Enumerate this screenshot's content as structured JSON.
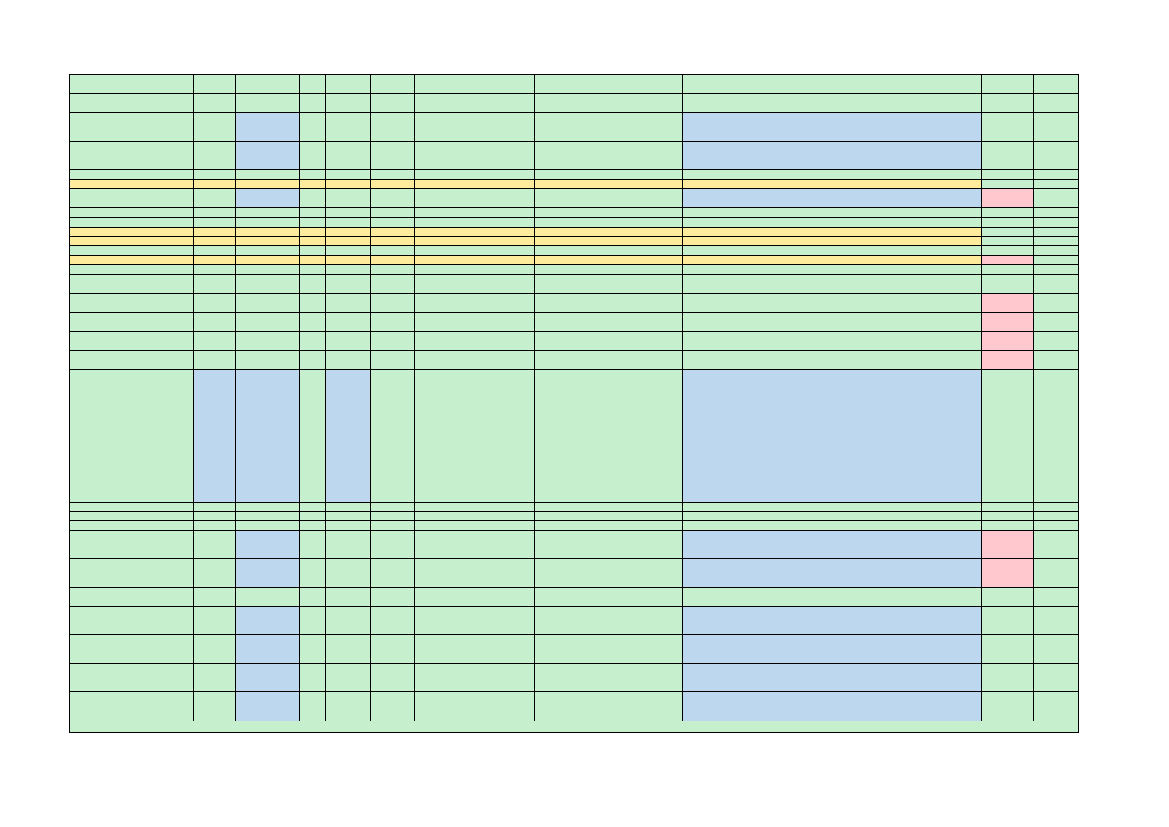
{
  "legend_colors": {
    "default": "#c6efce",
    "blue": "#bdd7ee",
    "yellow": "#ffeb9c",
    "pink": "#ffc7ce"
  },
  "rows": [
    {
      "fill": [],
      "texts": []
    },
    {
      "fill": [],
      "texts": []
    },
    {
      "fill": [
        [
          2,
          "blue"
        ],
        [
          8,
          "blue"
        ]
      ],
      "texts": []
    },
    {
      "fill": [
        [
          2,
          "blue"
        ],
        [
          8,
          "blue"
        ]
      ],
      "texts": []
    },
    {
      "fill": [],
      "texts": []
    },
    {
      "fill": [
        [
          0,
          "yellow"
        ],
        [
          1,
          "yellow"
        ],
        [
          2,
          "yellow"
        ],
        [
          3,
          "yellow"
        ],
        [
          4,
          "yellow"
        ],
        [
          5,
          "yellow"
        ],
        [
          6,
          "yellow"
        ],
        [
          7,
          "yellow"
        ],
        [
          8,
          "yellow"
        ]
      ],
      "texts": []
    },
    {
      "fill": [
        [
          2,
          "blue"
        ],
        [
          8,
          "blue"
        ],
        [
          9,
          "pink"
        ]
      ],
      "texts": []
    },
    {
      "fill": [],
      "texts": []
    },
    {
      "fill": [],
      "texts": []
    },
    {
      "fill": [
        [
          0,
          "yellow"
        ],
        [
          1,
          "yellow"
        ],
        [
          2,
          "yellow"
        ],
        [
          3,
          "yellow"
        ],
        [
          4,
          "yellow"
        ],
        [
          5,
          "yellow"
        ],
        [
          6,
          "yellow"
        ],
        [
          7,
          "yellow"
        ],
        [
          8,
          "yellow"
        ]
      ],
      "texts": []
    },
    {
      "fill": [
        [
          0,
          "yellow"
        ],
        [
          1,
          "yellow"
        ],
        [
          2,
          "yellow"
        ],
        [
          3,
          "yellow"
        ],
        [
          4,
          "yellow"
        ],
        [
          5,
          "yellow"
        ],
        [
          6,
          "yellow"
        ],
        [
          7,
          "yellow"
        ],
        [
          8,
          "yellow"
        ]
      ],
      "texts": []
    },
    {
      "fill": [],
      "texts": []
    },
    {
      "fill": [
        [
          0,
          "yellow"
        ],
        [
          1,
          "yellow"
        ],
        [
          2,
          "yellow"
        ],
        [
          3,
          "yellow"
        ],
        [
          4,
          "yellow"
        ],
        [
          5,
          "yellow"
        ],
        [
          6,
          "yellow"
        ],
        [
          7,
          "yellow"
        ],
        [
          8,
          "yellow"
        ],
        [
          9,
          "pink"
        ]
      ],
      "texts": []
    },
    {
      "fill": [],
      "texts": []
    },
    {
      "fill": [],
      "texts": []
    },
    {
      "fill": [
        [
          9,
          "pink"
        ]
      ],
      "texts": []
    },
    {
      "fill": [
        [
          9,
          "pink"
        ]
      ],
      "texts": []
    },
    {
      "fill": [
        [
          9,
          "pink"
        ]
      ],
      "texts": []
    },
    {
      "fill": [
        [
          9,
          "pink"
        ]
      ],
      "texts": []
    },
    {
      "fill": [
        [
          1,
          "blue"
        ],
        [
          2,
          "blue"
        ],
        [
          4,
          "blue"
        ],
        [
          8,
          "blue"
        ]
      ],
      "texts": []
    },
    {
      "fill": [],
      "texts": []
    },
    {
      "fill": [],
      "texts": []
    },
    {
      "fill": [],
      "texts": []
    },
    {
      "fill": [
        [
          2,
          "blue"
        ],
        [
          8,
          "blue"
        ],
        [
          9,
          "pink"
        ]
      ],
      "texts": []
    },
    {
      "fill": [
        [
          2,
          "blue"
        ],
        [
          8,
          "blue"
        ],
        [
          9,
          "pink"
        ]
      ],
      "texts": []
    },
    {
      "fill": [],
      "texts": []
    },
    {
      "fill": [
        [
          2,
          "blue"
        ],
        [
          8,
          "blue"
        ]
      ],
      "texts": []
    },
    {
      "fill": [
        [
          2,
          "blue"
        ],
        [
          8,
          "blue"
        ]
      ],
      "texts": []
    },
    {
      "fill": [
        [
          2,
          "blue"
        ],
        [
          8,
          "blue"
        ]
      ],
      "texts": []
    },
    {
      "fill": [
        [
          2,
          "blue"
        ],
        [
          8,
          "blue"
        ]
      ],
      "texts": []
    }
  ]
}
